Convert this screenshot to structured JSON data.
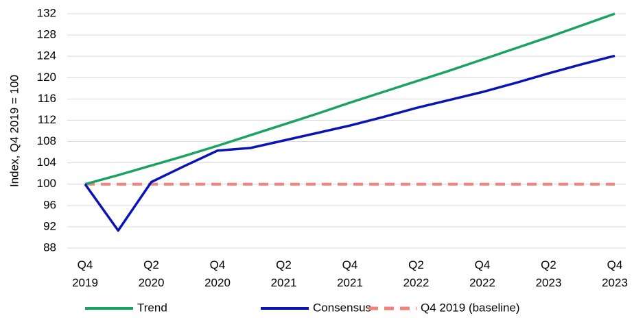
{
  "chart_data": {
    "type": "line",
    "y_label": "Index, Q4 2019 = 100",
    "categories": [
      "Q4 2019",
      null,
      "Q2 2020",
      null,
      "Q4 2020",
      null,
      "Q2 2021",
      null,
      "Q4 2021",
      null,
      "Q2 2022",
      null,
      "Q4 2022",
      null,
      "Q2 2023",
      null,
      "Q4 2023"
    ],
    "series": [
      {
        "name": "Trend",
        "color": "#1aa260",
        "dashed": false,
        "values": [
          100,
          101.7,
          103.5,
          105.3,
          107.2,
          109.2,
          111.2,
          113.2,
          115.3,
          117.3,
          119.3,
          121.3,
          123.4,
          125.5,
          127.6,
          129.8,
          132.0
        ]
      },
      {
        "name": "Consensus",
        "color": "#0a14b4",
        "dashed": false,
        "values": [
          100,
          91.3,
          100.4,
          103.4,
          106.3,
          106.8,
          108.2,
          109.6,
          111.0,
          112.6,
          114.3,
          115.8,
          117.3,
          119.0,
          120.8,
          122.5,
          124.1
        ]
      },
      {
        "name": "Q4 2019 (baseline)",
        "color": "#f4817a",
        "dashed": true,
        "values": [
          100,
          100,
          100,
          100,
          100,
          100,
          100,
          100,
          100,
          100,
          100,
          100,
          100,
          100,
          100,
          100,
          100
        ]
      }
    ],
    "ylim": [
      88,
      132
    ],
    "yticks": [
      88,
      92,
      96,
      100,
      104,
      108,
      112,
      116,
      120,
      124,
      128,
      132
    ],
    "grid": true,
    "legend": "bottom"
  }
}
